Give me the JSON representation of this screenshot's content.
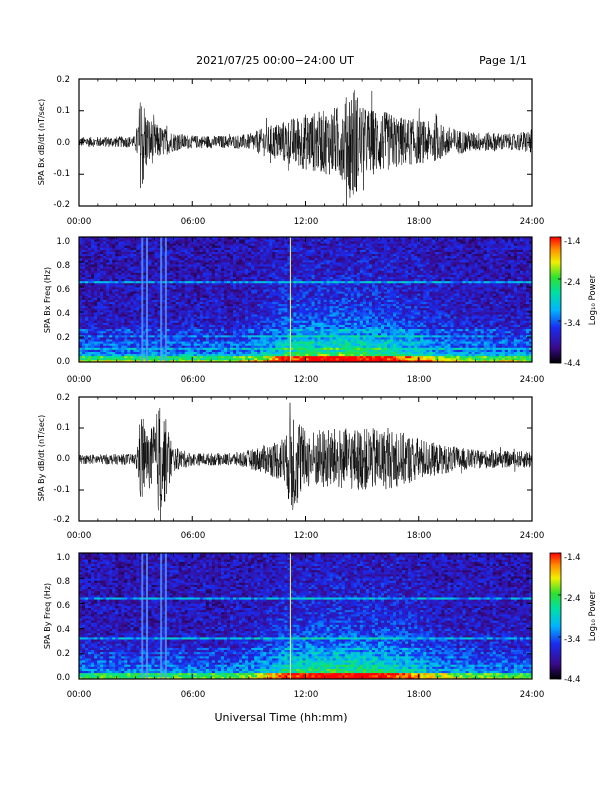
{
  "header": {
    "title": "2021/07/25  00:00−24:00 UT",
    "page": "Page 1/1"
  },
  "xlabel": "Universal Time (hh:mm)",
  "xticks": [
    "00:00",
    "06:00",
    "12:00",
    "18:00",
    "24:00"
  ],
  "colorbar": {
    "label": "Log₁₀ Power",
    "ticks": [
      "-1.4",
      "-2.4",
      "-3.4",
      "-4.4"
    ]
  },
  "chart_data": [
    {
      "type": "line",
      "ylabel": "SPA Bx dB/dt (nT/sec)",
      "xlim": [
        0,
        24
      ],
      "ylim": [
        -0.2,
        0.2
      ],
      "yticks": [
        "0.2",
        "0.1",
        "0.0",
        "-0.1",
        "-0.2"
      ],
      "grid": false,
      "envelope_hours": [
        0,
        3,
        3.3,
        3.6,
        4,
        5,
        6,
        8,
        9,
        10,
        11,
        12,
        13,
        14,
        14.5,
        15,
        16,
        17,
        18,
        19,
        20,
        21,
        22,
        23,
        24
      ],
      "envelope_amplitude": [
        0.015,
        0.018,
        0.17,
        0.09,
        0.06,
        0.03,
        0.02,
        0.02,
        0.025,
        0.05,
        0.07,
        0.09,
        0.1,
        0.12,
        0.2,
        0.11,
        0.1,
        0.08,
        0.07,
        0.06,
        0.04,
        0.03,
        0.03,
        0.025,
        0.04
      ]
    },
    {
      "type": "heatmap",
      "ylabel": "SPA Bx Freq (Hz)",
      "xlim": [
        0,
        24
      ],
      "ylim": [
        0,
        1.0
      ],
      "yticks": [
        "1.0",
        "0.8",
        "0.6",
        "0.4",
        "0.2",
        "0.0"
      ],
      "zlim": [
        -4.4,
        -1.4
      ]
    },
    {
      "type": "line",
      "ylabel": "SPA By dB/dt (nT/sec)",
      "xlim": [
        0,
        24
      ],
      "ylim": [
        -0.2,
        0.2
      ],
      "yticks": [
        "0.2",
        "0.1",
        "0.0",
        "-0.1",
        "-0.2"
      ],
      "grid": false,
      "envelope_hours": [
        0,
        3,
        3.3,
        3.6,
        4,
        4.3,
        5,
        6,
        8,
        9,
        10,
        11,
        11.2,
        12,
        13,
        14,
        15,
        16,
        17,
        18,
        19,
        20,
        21,
        22,
        23,
        24
      ],
      "envelope_amplitude": [
        0.015,
        0.018,
        0.16,
        0.08,
        0.12,
        0.2,
        0.04,
        0.02,
        0.02,
        0.03,
        0.05,
        0.08,
        0.2,
        0.09,
        0.1,
        0.1,
        0.1,
        0.1,
        0.09,
        0.07,
        0.05,
        0.04,
        0.03,
        0.03,
        0.025,
        0.03
      ]
    },
    {
      "type": "heatmap",
      "ylabel": "SPA By Freq (Hz)",
      "xlim": [
        0,
        24
      ],
      "ylim": [
        0,
        1.0
      ],
      "yticks": [
        "1.0",
        "0.8",
        "0.6",
        "0.4",
        "0.2",
        "0.0"
      ],
      "zlim": [
        -4.4,
        -1.4
      ]
    }
  ]
}
